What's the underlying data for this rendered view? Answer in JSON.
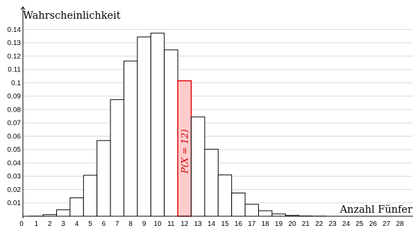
{
  "chart_data": {
    "type": "bar",
    "xlabel": "Anzahl Fünfer",
    "ylabel": "Wahrscheinlichkeit",
    "x": [
      0,
      1,
      2,
      3,
      4,
      5,
      6,
      7,
      8,
      9,
      10,
      11,
      12,
      13,
      14,
      15,
      16,
      17,
      18,
      19,
      20,
      21,
      22,
      23,
      24,
      25,
      26,
      27,
      28
    ],
    "values": [
      0.0,
      0.0001,
      0.0012,
      0.0048,
      0.0138,
      0.0307,
      0.0567,
      0.0874,
      0.1163,
      0.1344,
      0.1372,
      0.1247,
      0.1015,
      0.0744,
      0.0502,
      0.031,
      0.0174,
      0.0089,
      0.0041,
      0.0017,
      0.0006,
      0.0002,
      0.0001,
      0.0,
      0.0,
      0.0,
      0.0,
      0.0,
      0.0
    ],
    "xticks": [
      "0",
      "1",
      "2",
      "3",
      "4",
      "5",
      "6",
      "7",
      "8",
      "9",
      "10",
      "11",
      "12",
      "13",
      "14",
      "15",
      "16",
      "17",
      "18",
      "19",
      "20",
      "21",
      "22",
      "23",
      "24",
      "25",
      "26",
      "27",
      "28"
    ],
    "yticks": [
      "0.01",
      "0.02",
      "0.03",
      "0.04",
      "0.05",
      "0.06",
      "0.07",
      "0.08",
      "0.09",
      "0.1",
      "0.11",
      "0.12",
      "0.13",
      "0.14"
    ],
    "ylim": [
      0,
      0.145
    ],
    "grid": true,
    "highlight": {
      "x": 12,
      "label": "P(X = 12)",
      "fill_color": "#ffcccc",
      "stroke_color": "#e00000"
    },
    "bar_color": "#ffffff",
    "bar_stroke": "#000000",
    "grid_color": "#d9d9d9"
  }
}
